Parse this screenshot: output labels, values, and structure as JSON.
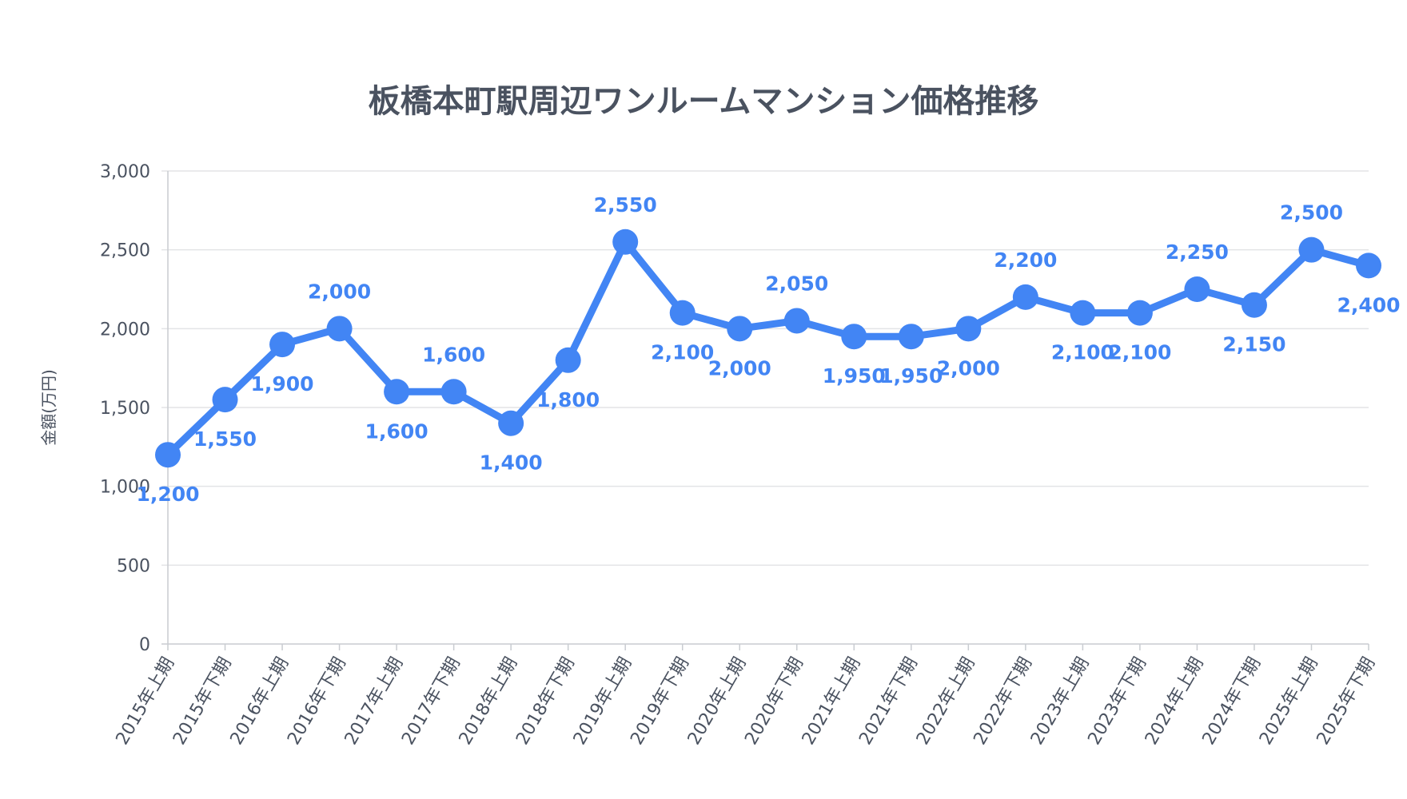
{
  "chart_data": {
    "type": "line",
    "title": "板橋本町駅周辺ワンルームマンション価格推移",
    "xlabel": "",
    "ylabel": "金額(万円)",
    "ylim": [
      0,
      3000
    ],
    "yticks": [
      0,
      500,
      1000,
      1500,
      2000,
      2500,
      3000
    ],
    "ytick_labels": [
      "0",
      "500",
      "1,000",
      "1,500",
      "2,000",
      "2,500",
      "3,000"
    ],
    "grid": true,
    "legend": "none",
    "color": "#4285f4",
    "categories": [
      "2015年上期",
      "2015年下期",
      "2016年上期",
      "2016年下期",
      "2017年上期",
      "2017年下期",
      "2018年上期",
      "2018年下期",
      "2019年上期",
      "2019年下期",
      "2020年上期",
      "2020年下期",
      "2021年上期",
      "2021年下期",
      "2022年上期",
      "2022年下期",
      "2023年上期",
      "2023年下期",
      "2024年上期",
      "2024年下期",
      "2025年上期",
      "2025年下期"
    ],
    "series": [
      {
        "values": [
          1200,
          1550,
          1900,
          2000,
          1600,
          1600,
          1400,
          1800,
          2550,
          2100,
          2000,
          2050,
          1950,
          1950,
          2000,
          2200,
          2100,
          2100,
          2250,
          2150,
          2500,
          2400
        ],
        "labels": [
          "1,200",
          "1,550",
          "1,900",
          "2,000",
          "1,600",
          "1,600",
          "1,400",
          "1,800",
          "2,550",
          "2,100",
          "2,000",
          "2,050",
          "1,950",
          "1,950",
          "2,000",
          "2,200",
          "2,100",
          "2,100",
          "2,250",
          "2,150",
          "2,500",
          "2,400"
        ]
      }
    ]
  }
}
